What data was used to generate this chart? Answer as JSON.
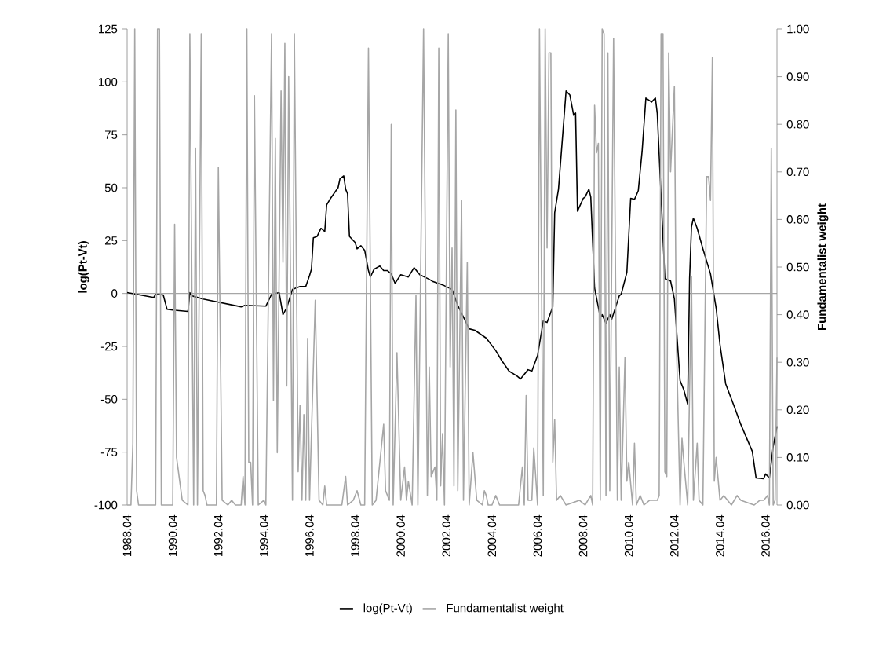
{
  "chart_data": {
    "type": "line",
    "ylabel": "log(Pt-Vt)",
    "y2label": "Fundamentalist weight",
    "xlim": [
      "1988-04",
      "2016-10"
    ],
    "xticks": [
      {
        "value": "1988-04",
        "label": "1988.04"
      },
      {
        "value": "1990-04",
        "label": "1990.04"
      },
      {
        "value": "1992-04",
        "label": "1992.04"
      },
      {
        "value": "1994-04",
        "label": "1994.04"
      },
      {
        "value": "1996-04",
        "label": "1996.04"
      },
      {
        "value": "1998-04",
        "label": "1998.04"
      },
      {
        "value": "2000-04",
        "label": "2000.04"
      },
      {
        "value": "2002-04",
        "label": "2002.04"
      },
      {
        "value": "2004-04",
        "label": "2004.04"
      },
      {
        "value": "2006-04",
        "label": "2006.04"
      },
      {
        "value": "2008-04",
        "label": "2008.04"
      },
      {
        "value": "2010-04",
        "label": "2010.04"
      },
      {
        "value": "2012-04",
        "label": "2012.04"
      },
      {
        "value": "2014-04",
        "label": "2014.04"
      },
      {
        "value": "2016-04",
        "label": "2016.04"
      }
    ],
    "ylim": [
      -100,
      125
    ],
    "yticks": [
      -100,
      -75,
      -50,
      -25,
      0,
      25,
      50,
      75,
      100,
      125
    ],
    "y2lim": [
      0,
      1
    ],
    "y2ticks": [
      {
        "value": 0,
        "label": "0.00"
      },
      {
        "value": 0.1,
        "label": "0.10"
      },
      {
        "value": 0.2,
        "label": "0.20"
      },
      {
        "value": 0.3,
        "label": "0.30"
      },
      {
        "value": 0.4,
        "label": "0.40"
      },
      {
        "value": 0.5,
        "label": "0.50"
      },
      {
        "value": 0.6,
        "label": "0.60"
      },
      {
        "value": 0.7,
        "label": "0.70"
      },
      {
        "value": 0.8,
        "label": "0.80"
      },
      {
        "value": 0.9,
        "label": "0.90"
      },
      {
        "value": 1,
        "label": "1.00"
      }
    ],
    "legend": "bottom",
    "ref_lines": [
      {
        "axis": "y",
        "value": 0,
        "color": "#a6a6a6"
      }
    ],
    "series": [
      {
        "name": "log(Pt-Vt)",
        "color": "#000000",
        "x": [
          "1988-04",
          "1989-06",
          "1989-07",
          "1989-11",
          "1990-01",
          "1990-04",
          "1990-12",
          "1991-01",
          "1991-02",
          "1991-08",
          "1993-04",
          "1993-06",
          "1994-05",
          "1994-08",
          "1994-12",
          "1995-02",
          "1995-04",
          "1995-07",
          "1995-11",
          "1996-02",
          "1996-04",
          "1996-05",
          "1996-06",
          "1996-08",
          "1996-10",
          "1996-12",
          "1997-01",
          "1997-03",
          "1997-07",
          "1997-08",
          "1997-10",
          "1997-11",
          "1997-12",
          "1998-01",
          "1998-04",
          "1998-05",
          "1998-07",
          "1998-09",
          "1998-11",
          "1998-12",
          "1999-02",
          "1999-05",
          "1999-07",
          "1999-09",
          "1999-11",
          "2000-01",
          "2000-04",
          "2000-08",
          "2000-11",
          "2001-02",
          "2001-07",
          "2001-09",
          "2002-02",
          "2002-07",
          "2002-10",
          "2003-04",
          "2003-07",
          "2004-01",
          "2004-06",
          "2004-09",
          "2005-01",
          "2005-05",
          "2005-07",
          "2005-11",
          "2006-01",
          "2006-04",
          "2006-07",
          "2006-09",
          "2006-12",
          "2007-01",
          "2007-03",
          "2007-07",
          "2007-09",
          "2007-11",
          "2007-12",
          "2008-01",
          "2008-04",
          "2008-05",
          "2008-07",
          "2008-08",
          "2008-10",
          "2009-01",
          "2009-02",
          "2009-04",
          "2009-06",
          "2009-07",
          "2009-11",
          "2009-12",
          "2010-03",
          "2010-05",
          "2010-07",
          "2010-09",
          "2010-11",
          "2011-01",
          "2011-04",
          "2011-06",
          "2011-07",
          "2011-11",
          "2012-02",
          "2012-04",
          "2012-07",
          "2012-09",
          "2012-11",
          "2012-12",
          "2013-01",
          "2013-02",
          "2013-04",
          "2013-07",
          "2013-11",
          "2014-02",
          "2014-04",
          "2014-07",
          "2014-12",
          "2015-03",
          "2015-09",
          "2015-11",
          "2016-03",
          "2016-04",
          "2016-06",
          "2016-08",
          "2016-10"
        ],
        "values": [
          0.4,
          -1.9,
          -0.4,
          -0.7,
          -7.4,
          -7.8,
          -8.5,
          0.4,
          -1.1,
          -2.6,
          -6.3,
          -5.6,
          -6.0,
          -0.4,
          0.4,
          -10.0,
          -6.7,
          1.9,
          3.3,
          3.3,
          8.5,
          11.5,
          26.3,
          27.0,
          30.8,
          29.3,
          41.9,
          44.9,
          50.0,
          54.2,
          55.6,
          49.3,
          47.1,
          27.0,
          24.1,
          21.1,
          22.6,
          20.4,
          10.8,
          7.8,
          11.5,
          13.0,
          10.8,
          10.8,
          9.3,
          4.8,
          8.9,
          7.8,
          12.2,
          8.9,
          6.7,
          5.6,
          4.1,
          1.9,
          -5.6,
          -16.7,
          -17.4,
          -21.1,
          -27.0,
          -31.5,
          -36.7,
          -38.9,
          -40.4,
          -36.0,
          -36.7,
          -29.3,
          -13.0,
          -13.7,
          -6.3,
          38.2,
          49.3,
          95.7,
          93.8,
          84.2,
          85.3,
          38.9,
          44.9,
          45.6,
          49.3,
          45.6,
          2.6,
          -11.1,
          -10.0,
          -14.1,
          -10.0,
          -12.2,
          -1.1,
          -0.4,
          10.0,
          45.0,
          44.5,
          48.6,
          67.1,
          92.4,
          90.5,
          92.4,
          85.0,
          7.0,
          5.9,
          -2.6,
          -41.2,
          -45.6,
          -52.3,
          7.0,
          31.5,
          35.6,
          30.8,
          21.1,
          9.3,
          -7.0,
          -24.1,
          -42.7,
          -54.6,
          -62.0,
          -74.6,
          -87.2,
          -87.5,
          -85.3,
          -87.2,
          -72.4,
          -62.7
        ]
      },
      {
        "name": "Fundamentalist weight",
        "color": "#a6a6a6",
        "axis": "y2",
        "x": [
          "1988-04",
          "1988-06",
          "1988-07",
          "1988-08",
          "1988-09",
          "1988-10",
          "1989-07",
          "1989-08",
          "1989-09",
          "1989-10",
          "1990-04",
          "1990-05",
          "1990-06",
          "1990-09",
          "1990-12",
          "1991-01",
          "1991-03",
          "1991-04",
          "1991-05",
          "1991-07",
          "1991-08",
          "1991-09",
          "1991-10",
          "1992-03",
          "1992-04",
          "1992-06",
          "1992-09",
          "1992-11",
          "1993-01",
          "1993-04",
          "1993-05",
          "1993-06",
          "1993-07",
          "1993-08",
          "1993-09",
          "1993-10",
          "1993-11",
          "1994-01",
          "1994-04",
          "1994-05",
          "1994-08",
          "1994-09",
          "1994-10",
          "1994-11",
          "1995-01",
          "1995-02",
          "1995-03",
          "1995-04",
          "1995-05",
          "1995-07",
          "1995-08",
          "1995-10",
          "1995-11",
          "1995-12",
          "1996-01",
          "1996-02",
          "1996-03",
          "1996-04",
          "1996-07",
          "1996-09",
          "1996-11",
          "1996-12",
          "1997-01",
          "1997-09",
          "1997-11",
          "1997-12",
          "1998-03",
          "1998-05",
          "1998-07",
          "1998-09",
          "1998-11",
          "1999-01",
          "1999-03",
          "1999-07",
          "1999-08",
          "1999-10",
          "1999-11",
          "1999-12",
          "2000-02",
          "2000-04",
          "2000-06",
          "2000-07",
          "2000-08",
          "2000-10",
          "2000-12",
          "2001-01",
          "2001-04",
          "2001-06",
          "2001-07",
          "2001-08",
          "2001-10",
          "2001-11",
          "2001-12",
          "2002-01",
          "2002-02",
          "2002-03",
          "2002-05",
          "2002-06",
          "2002-07",
          "2002-08",
          "2002-09",
          "2002-10",
          "2002-12",
          "2003-01",
          "2003-03",
          "2003-04",
          "2003-06",
          "2003-08",
          "2003-11",
          "2003-12",
          "2004-01",
          "2004-02",
          "2004-04",
          "2004-06",
          "2004-08",
          "2005-06",
          "2005-08",
          "2005-09",
          "2005-10",
          "2005-11",
          "2006-01",
          "2006-02",
          "2006-04",
          "2006-05",
          "2006-07",
          "2006-08",
          "2006-09",
          "2006-10",
          "2006-11",
          "2006-12",
          "2007-01",
          "2007-02",
          "2007-04",
          "2007-07",
          "2008-02",
          "2008-05",
          "2008-08",
          "2008-09",
          "2008-10",
          "2008-11",
          "2008-12",
          "2009-01",
          "2009-02",
          "2009-03",
          "2009-04",
          "2009-05",
          "2009-06",
          "2009-08",
          "2009-10",
          "2009-11",
          "2009-12",
          "2010-02",
          "2010-03",
          "2010-04",
          "2010-06",
          "2010-07",
          "2010-08",
          "2010-10",
          "2010-12",
          "2011-03",
          "2011-07",
          "2011-08",
          "2011-09",
          "2011-10",
          "2011-11",
          "2011-12",
          "2012-01",
          "2012-02",
          "2012-04",
          "2012-05",
          "2012-07",
          "2012-08",
          "2012-09",
          "2012-11",
          "2013-01",
          "2013-02",
          "2013-04",
          "2013-05",
          "2013-07",
          "2013-09",
          "2013-10",
          "2013-11",
          "2013-12",
          "2014-01",
          "2014-02",
          "2014-04",
          "2014-06",
          "2014-08",
          "2014-10",
          "2015-01",
          "2015-03",
          "2015-10",
          "2016-01",
          "2016-03",
          "2016-05",
          "2016-06",
          "2016-07",
          "2016-08",
          "2016-09",
          "2016-10"
        ],
        "values": [
          0,
          0,
          0.13,
          1.0,
          0.03,
          0,
          0,
          1.0,
          1.0,
          0,
          0,
          0.59,
          0.1,
          0.01,
          0,
          0.99,
          0,
          0.75,
          0,
          0.99,
          0.03,
          0.02,
          0,
          0,
          0.71,
          0.01,
          0,
          0.01,
          0,
          0,
          0.06,
          0,
          1.0,
          0.09,
          0.09,
          0,
          0.86,
          0,
          0.01,
          0,
          0.99,
          0.22,
          0.77,
          0.11,
          0.87,
          0.51,
          0.97,
          0.25,
          0.9,
          0.01,
          0.99,
          0.07,
          0.21,
          0.01,
          0.19,
          0.01,
          0.35,
          0.01,
          0.43,
          0.01,
          0,
          0.04,
          0,
          0,
          0.06,
          0,
          0.01,
          0.03,
          0,
          0,
          0.96,
          0,
          0.01,
          0.17,
          0.03,
          0.01,
          0.8,
          0,
          0.32,
          0.01,
          0.08,
          0.01,
          0.05,
          0,
          0.44,
          0,
          1.0,
          0.02,
          0.29,
          0.06,
          0.08,
          0.01,
          0.96,
          0.04,
          0.15,
          0,
          0.99,
          0.29,
          0.54,
          0.04,
          0.83,
          0.03,
          0.64,
          0.01,
          0.51,
          0,
          0.11,
          0.01,
          0,
          0.03,
          0.02,
          0,
          0,
          0.02,
          0,
          0,
          0.08,
          0,
          0.23,
          0.01,
          0.01,
          0.12,
          0,
          1.0,
          0.02,
          1.0,
          0.54,
          0.95,
          0.95,
          0.09,
          0.18,
          0.01,
          0.02,
          0,
          0.01,
          0,
          0.02,
          0,
          0.84,
          0.74,
          0.76,
          0.01,
          1.0,
          0.99,
          0.02,
          0.95,
          0.03,
          0.98,
          0.01,
          0.29,
          0.01,
          0.31,
          0.05,
          0.09,
          0,
          0.13,
          0,
          0.02,
          0,
          0.01,
          0.01,
          0.02,
          0.99,
          0.99,
          0.07,
          0.06,
          0.95,
          0.7,
          0.88,
          0.36,
          0,
          0.14,
          0.09,
          0,
          0.48,
          0.01,
          0.13,
          0.01,
          0,
          0.69,
          0.69,
          0.64,
          0.94,
          0.05,
          0.1,
          0.01,
          0.02,
          0.01,
          0,
          0.02,
          0.01,
          0,
          0.01,
          0.01,
          0.02,
          0,
          0.75,
          0,
          0.01,
          0.31
        ]
      }
    ]
  }
}
